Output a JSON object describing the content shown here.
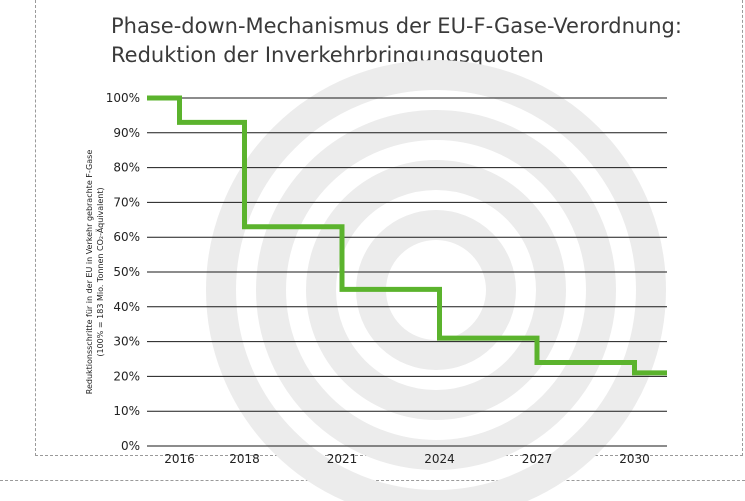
{
  "chart_data": {
    "type": "line",
    "step": true,
    "title": "Phase-down-Mechanismus der EU-F-Gase-Verordnung:",
    "subtitle": "Reduktion der Inverkehrbringungsquoten",
    "ylabel_line1": "Reduktionsschritte für in der EU in Verkehr gebrachte F-Gase",
    "ylabel_line2": "(100% = 183 Mio. Tonnen CO₂-Äquivalent)",
    "x_ticks": [
      "2016",
      "2018",
      "2021",
      "2024",
      "2027",
      "2030"
    ],
    "y_ticks": [
      "0%",
      "10%",
      "20%",
      "30%",
      "40%",
      "50%",
      "60%",
      "70%",
      "80%",
      "90%",
      "100%"
    ],
    "xlim": [
      2015,
      2031
    ],
    "ylim": [
      0,
      100
    ],
    "grid": true,
    "points": [
      {
        "x": 2015,
        "y": 100
      },
      {
        "x": 2016,
        "y": 93
      },
      {
        "x": 2018,
        "y": 63
      },
      {
        "x": 2021,
        "y": 45
      },
      {
        "x": 2024,
        "y": 31
      },
      {
        "x": 2027,
        "y": 24
      },
      {
        "x": 2030,
        "y": 21
      }
    ],
    "x_end": 2031,
    "line_color": "#5bb32d",
    "watermark_color": "#ececec"
  }
}
